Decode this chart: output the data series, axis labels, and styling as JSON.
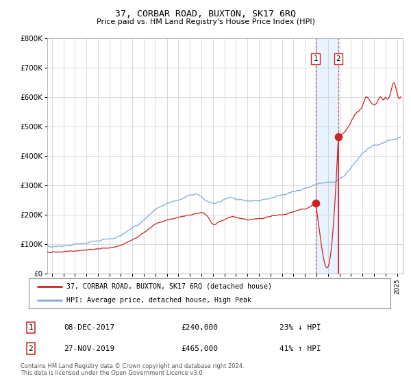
{
  "title": "37, CORBAR ROAD, BUXTON, SK17 6RQ",
  "subtitle": "Price paid vs. HM Land Registry's House Price Index (HPI)",
  "legend_line1": "37, CORBAR ROAD, BUXTON, SK17 6RQ (detached house)",
  "legend_line2": "HPI: Average price, detached house, High Peak",
  "table_row1": [
    "1",
    "08-DEC-2017",
    "£240,000",
    "23% ↓ HPI"
  ],
  "table_row2": [
    "2",
    "27-NOV-2019",
    "£465,000",
    "41% ↑ HPI"
  ],
  "footer": "Contains HM Land Registry data © Crown copyright and database right 2024.\nThis data is licensed under the Open Government Licence v3.0.",
  "hpi_color": "#7aaadd",
  "price_color": "#cc2222",
  "point1_x": 2017.92,
  "point1_y": 240000,
  "point2_x": 2019.9,
  "point2_y": 465000,
  "shade_x1": 2017.92,
  "shade_x2": 2019.9,
  "ylim": [
    0,
    800000
  ],
  "xlim": [
    1994.6,
    2025.5
  ],
  "yticks": [
    0,
    100000,
    200000,
    300000,
    400000,
    500000,
    600000,
    700000,
    800000
  ],
  "xticks": [
    1995,
    1996,
    1997,
    1998,
    1999,
    2000,
    2001,
    2002,
    2003,
    2004,
    2005,
    2006,
    2007,
    2008,
    2009,
    2010,
    2011,
    2012,
    2013,
    2014,
    2015,
    2016,
    2017,
    2018,
    2019,
    2020,
    2021,
    2022,
    2023,
    2024,
    2025
  ],
  "background_color": "#ffffff",
  "grid_color": "#cccccc",
  "shade_color": "#ddeeff"
}
